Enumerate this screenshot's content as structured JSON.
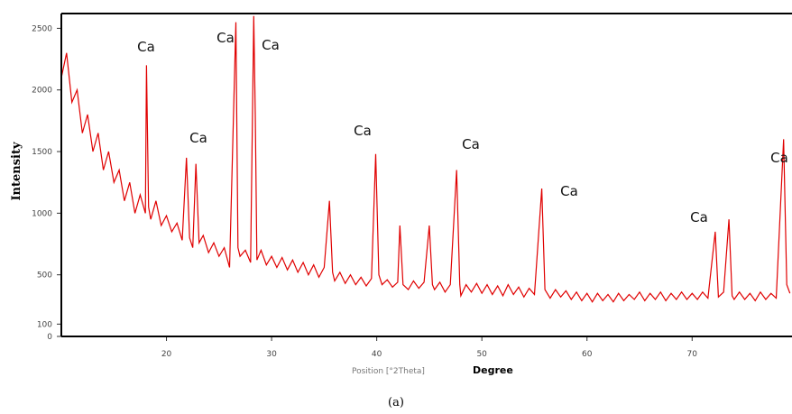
{
  "chart_data": {
    "type": "line",
    "y_label": "Intensity",
    "x_label": "Position [°2Theta]",
    "x_label_unit": "Degree",
    "caption": "(a)",
    "annotations": [
      "Ca",
      "Ca",
      "Ca",
      "Ca",
      "Ca",
      "Ca",
      "Ca",
      "Ca",
      "Ca",
      "Ca"
    ],
    "xlim": [
      10,
      79.5
    ],
    "xticks": [
      20,
      30,
      40,
      50,
      60,
      70
    ],
    "ylim": [
      0,
      2620
    ],
    "yticks": [
      0,
      100,
      500,
      1000,
      1500,
      2000,
      2500
    ],
    "grid": false,
    "series": [
      {
        "color": "#e00000",
        "x": [
          10,
          10.5,
          11,
          11.5,
          12,
          12.5,
          13,
          13.5,
          14,
          14.5,
          15,
          15.5,
          16,
          16.5,
          17,
          17.5,
          18,
          18.1,
          18.3,
          18.5,
          19,
          19.5,
          20,
          20.5,
          21,
          21.5,
          21.9,
          22.2,
          22.5,
          22.8,
          23.1,
          23.5,
          24,
          24.5,
          25,
          25.5,
          26,
          26.6,
          26.8,
          27,
          27.5,
          28,
          28.3,
          28.45,
          28.6,
          29,
          29.5,
          30,
          30.5,
          31,
          31.5,
          32,
          32.5,
          33,
          33.5,
          34,
          34.5,
          35,
          35.5,
          35.8,
          36,
          36.5,
          37,
          37.5,
          38,
          38.5,
          39,
          39.5,
          39.9,
          40.2,
          40.5,
          41,
          41.5,
          42,
          42.2,
          42.5,
          43,
          43.5,
          44,
          44.5,
          45,
          45.3,
          45.5,
          46,
          46.5,
          47,
          47.6,
          47.9,
          48,
          48.5,
          49,
          49.5,
          50,
          50.5,
          51,
          51.5,
          52,
          52.5,
          53,
          53.5,
          54,
          54.5,
          55,
          55.7,
          56,
          56.5,
          57,
          57.5,
          58,
          58.5,
          59,
          59.5,
          60,
          60.5,
          61,
          61.5,
          62,
          62.5,
          63,
          63.5,
          64,
          64.5,
          65,
          65.5,
          66,
          66.5,
          67,
          67.5,
          68,
          68.5,
          69,
          69.5,
          70,
          70.5,
          71,
          71.5,
          72.2,
          72.5,
          73,
          73.5,
          73.8,
          74,
          74.5,
          75,
          75.5,
          76,
          76.5,
          77,
          77.5,
          78,
          78.7,
          79,
          79.3
        ],
        "values": [
          2100,
          2300,
          1900,
          2000,
          1650,
          1800,
          1500,
          1650,
          1350,
          1500,
          1250,
          1350,
          1100,
          1250,
          1000,
          1150,
          1000,
          2200,
          1050,
          950,
          1100,
          900,
          980,
          850,
          920,
          780,
          1450,
          800,
          720,
          1400,
          760,
          820,
          680,
          760,
          650,
          720,
          560,
          2550,
          720,
          650,
          700,
          600,
          2600,
          1800,
          620,
          700,
          580,
          650,
          560,
          640,
          540,
          620,
          520,
          600,
          500,
          580,
          480,
          560,
          1100,
          520,
          450,
          520,
          430,
          500,
          420,
          480,
          410,
          470,
          1480,
          500,
          420,
          460,
          400,
          440,
          900,
          420,
          380,
          450,
          390,
          440,
          900,
          420,
          380,
          440,
          360,
          420,
          1350,
          420,
          330,
          420,
          360,
          430,
          350,
          420,
          340,
          410,
          330,
          420,
          340,
          400,
          320,
          390,
          340,
          1200,
          380,
          310,
          380,
          320,
          370,
          300,
          360,
          290,
          350,
          280,
          350,
          290,
          340,
          280,
          350,
          290,
          340,
          300,
          360,
          290,
          350,
          300,
          360,
          290,
          350,
          300,
          360,
          300,
          350,
          300,
          360,
          310,
          850,
          320,
          360,
          950,
          330,
          300,
          360,
          300,
          350,
          290,
          360,
          300,
          350,
          310,
          1600,
          420,
          350
        ]
      }
    ]
  }
}
